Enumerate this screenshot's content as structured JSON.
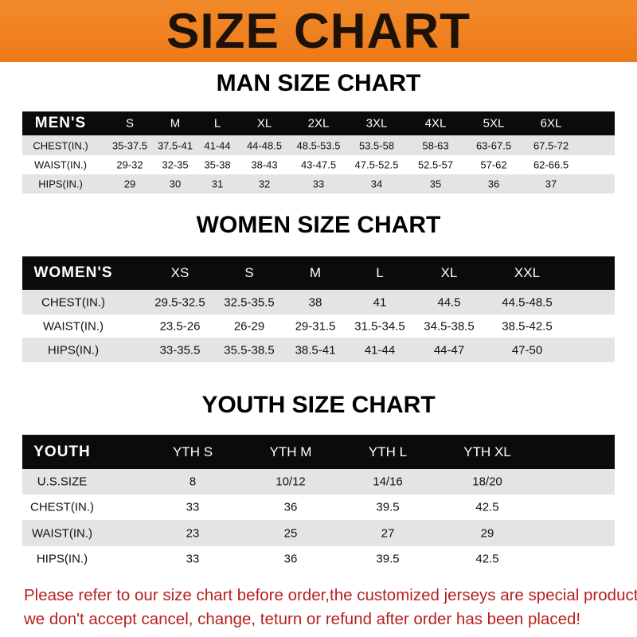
{
  "banner": {
    "title": "SIZE CHART",
    "color": "#ef8020"
  },
  "men": {
    "heading": "MAN SIZE CHART",
    "header": [
      "MEN'S",
      "S",
      "M",
      "L",
      "XL",
      "2XL",
      "3XL",
      "4XL",
      "5XL",
      "6XL"
    ],
    "rows": [
      [
        "CHEST(IN.)",
        "35-37.5",
        "37.5-41",
        "41-44",
        "44-48.5",
        "48.5-53.5",
        "53.5-58",
        "58-63",
        "63-67.5",
        "67.5-72"
      ],
      [
        "WAIST(IN.)",
        "29-32",
        "32-35",
        "35-38",
        "38-43",
        "43-47.5",
        "47.5-52.5",
        "52.5-57",
        "57-62",
        "62-66.5"
      ],
      [
        "HIPS(IN.)",
        "29",
        "30",
        "31",
        "32",
        "33",
        "34",
        "35",
        "36",
        "37"
      ]
    ]
  },
  "women": {
    "heading": "WOMEN SIZE CHART",
    "header": [
      "WOMEN'S",
      "XS",
      "S",
      "M",
      "L",
      "XL",
      "XXL"
    ],
    "rows": [
      [
        "CHEST(IN.)",
        "29.5-32.5",
        "32.5-35.5",
        "38",
        "41",
        "44.5",
        "44.5-48.5"
      ],
      [
        "WAIST(IN.)",
        "23.5-26",
        "26-29",
        "29-31.5",
        "31.5-34.5",
        "34.5-38.5",
        "38.5-42.5"
      ],
      [
        "HIPS(IN.)",
        "33-35.5",
        "35.5-38.5",
        "38.5-41",
        "41-44",
        "44-47",
        "47-50"
      ]
    ]
  },
  "youth": {
    "heading": "YOUTH SIZE CHART",
    "header": [
      "YOUTH",
      "YTH S",
      "YTH M",
      "YTH L",
      "YTH XL"
    ],
    "rows": [
      [
        "U.S.SIZE",
        "8",
        "10/12",
        "14/16",
        "18/20"
      ],
      [
        "CHEST(IN.)",
        "33",
        "36",
        "39.5",
        "42.5"
      ],
      [
        "WAIST(IN.)",
        "23",
        "25",
        "27",
        "29"
      ],
      [
        "HIPS(IN.)",
        "33",
        "36",
        "39.5",
        "42.5"
      ]
    ]
  },
  "notice": {
    "line1": "Please refer to our size chart before order,the customized jerseys are special products,",
    "line2": "we don't accept cancel, change, teturn or refund after order has been placed!",
    "color": "#b8201e"
  }
}
